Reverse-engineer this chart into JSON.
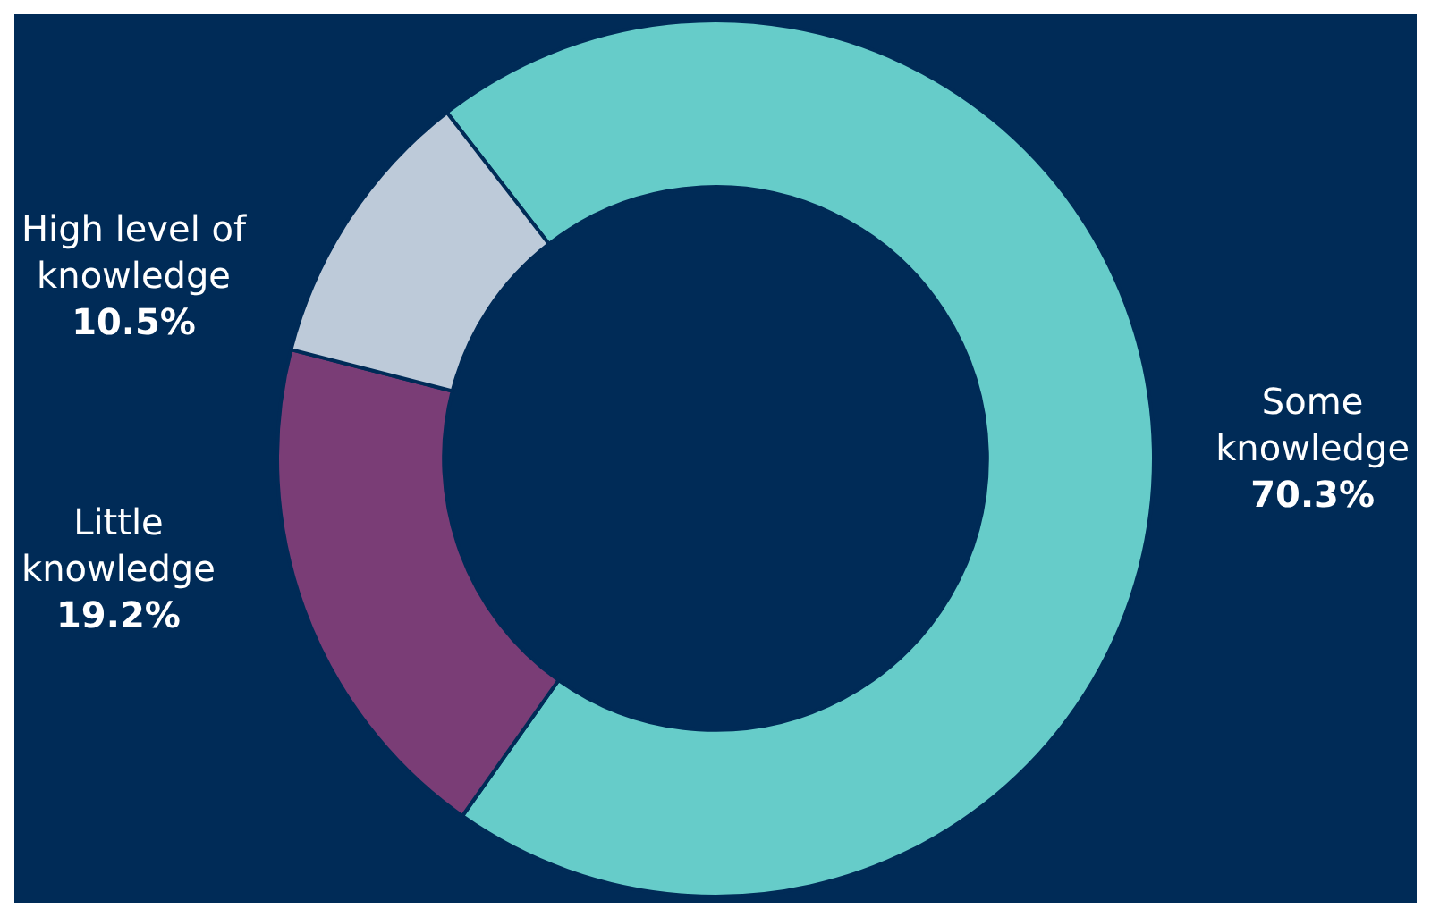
{
  "chart_data": {
    "type": "donut",
    "categories": [
      "Some knowledge",
      "Little knowledge",
      "High level of knowledge"
    ],
    "values": [
      70.3,
      19.2,
      10.5
    ],
    "value_labels": [
      "70.3%",
      "19.2%",
      "10.5%"
    ],
    "colors": [
      "#66ccc9",
      "#7a3d76",
      "#bdcad9"
    ],
    "legend": false
  }
}
